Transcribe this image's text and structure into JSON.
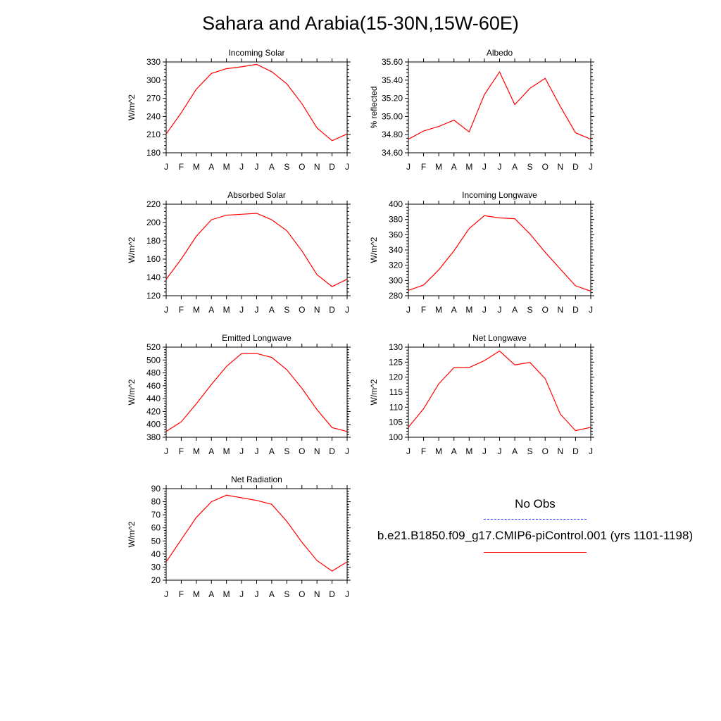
{
  "title": "Sahara and Arabia(15-30N,15W-60E)",
  "colors": {
    "model": "#ff0000",
    "obs": "#3a3aff",
    "axis": "#000000"
  },
  "legend": {
    "obs_label": "No Obs",
    "model_label": "b.e21.B1850.f09_g17.CMIP6-piControl.001 (yrs 1101-1198)"
  },
  "chart_data": [
    {
      "type": "line",
      "title": "Incoming Solar",
      "ylabel": "W/m^2",
      "categories": [
        "J",
        "F",
        "M",
        "A",
        "M",
        "J",
        "J",
        "A",
        "S",
        "O",
        "N",
        "D",
        "J"
      ],
      "yticks": [
        "180",
        "210",
        "240",
        "270",
        "300",
        "330"
      ],
      "ylim": [
        180,
        330
      ],
      "series": [
        {
          "values": [
            211,
            246,
            285,
            311,
            319,
            322,
            326,
            314,
            294,
            261,
            221,
            200,
            211
          ]
        }
      ]
    },
    {
      "type": "line",
      "title": "Albedo",
      "ylabel": "% reflected",
      "categories": [
        "J",
        "F",
        "M",
        "A",
        "M",
        "J",
        "J",
        "A",
        "S",
        "O",
        "N",
        "D",
        "J"
      ],
      "yticks": [
        "34.60",
        "34.80",
        "35.00",
        "35.20",
        "35.40",
        "35.60"
      ],
      "ylim": [
        34.6,
        35.6
      ],
      "series": [
        {
          "values": [
            34.75,
            34.84,
            34.89,
            34.96,
            34.83,
            35.24,
            35.49,
            35.13,
            35.31,
            35.42,
            35.11,
            34.82,
            34.75
          ]
        }
      ]
    },
    {
      "type": "line",
      "title": "Absorbed Solar",
      "ylabel": "W/m^2",
      "categories": [
        "J",
        "F",
        "M",
        "A",
        "M",
        "J",
        "J",
        "A",
        "S",
        "O",
        "N",
        "D",
        "J"
      ],
      "yticks": [
        "120",
        "140",
        "160",
        "180",
        "200",
        "220"
      ],
      "ylim": [
        120,
        220
      ],
      "series": [
        {
          "values": [
            138,
            160,
            185,
            203,
            208,
            209,
            210,
            203,
            191,
            169,
            143,
            130,
            138
          ]
        }
      ]
    },
    {
      "type": "line",
      "title": "Incoming Longwave",
      "ylabel": "W/m^2",
      "categories": [
        "J",
        "F",
        "M",
        "A",
        "M",
        "J",
        "J",
        "A",
        "S",
        "O",
        "N",
        "D",
        "J"
      ],
      "yticks": [
        "280",
        "300",
        "320",
        "340",
        "360",
        "380",
        "400"
      ],
      "ylim": [
        280,
        400
      ],
      "series": [
        {
          "values": [
            287,
            294,
            314,
            339,
            368,
            385,
            382,
            381,
            361,
            337,
            315,
            293,
            286
          ]
        }
      ]
    },
    {
      "type": "line",
      "title": "Emitted Longwave",
      "ylabel": "W/m^2",
      "categories": [
        "J",
        "F",
        "M",
        "A",
        "M",
        "J",
        "J",
        "A",
        "S",
        "O",
        "N",
        "D",
        "J"
      ],
      "yticks": [
        "380",
        "400",
        "420",
        "440",
        "460",
        "480",
        "500",
        "520"
      ],
      "ylim": [
        380,
        520
      ],
      "series": [
        {
          "values": [
            389,
            404,
            432,
            462,
            490,
            510,
            510,
            504,
            485,
            456,
            423,
            395,
            389
          ]
        }
      ]
    },
    {
      "type": "line",
      "title": "Net Longwave",
      "ylabel": "W/m^2",
      "categories": [
        "J",
        "F",
        "M",
        "A",
        "M",
        "J",
        "J",
        "A",
        "S",
        "O",
        "N",
        "D",
        "J"
      ],
      "yticks": [
        "100",
        "105",
        "110",
        "115",
        "120",
        "125",
        "130"
      ],
      "ylim": [
        100,
        130
      ],
      "series": [
        {
          "values": [
            103.3,
            109.5,
            117.8,
            123.2,
            123.2,
            125.5,
            128.7,
            124.1,
            124.9,
            119.5,
            107.7,
            102.2,
            103.3
          ]
        }
      ]
    },
    {
      "type": "line",
      "title": "Net Radiation",
      "ylabel": "W/m^2",
      "categories": [
        "J",
        "F",
        "M",
        "A",
        "M",
        "J",
        "J",
        "A",
        "S",
        "O",
        "N",
        "D",
        "J"
      ],
      "yticks": [
        "20",
        "30",
        "40",
        "50",
        "60",
        "70",
        "80",
        "90"
      ],
      "ylim": [
        20,
        90
      ],
      "series": [
        {
          "values": [
            34,
            51,
            68,
            80,
            85,
            83,
            81,
            78,
            65,
            49,
            35,
            27,
            34
          ]
        }
      ]
    }
  ]
}
